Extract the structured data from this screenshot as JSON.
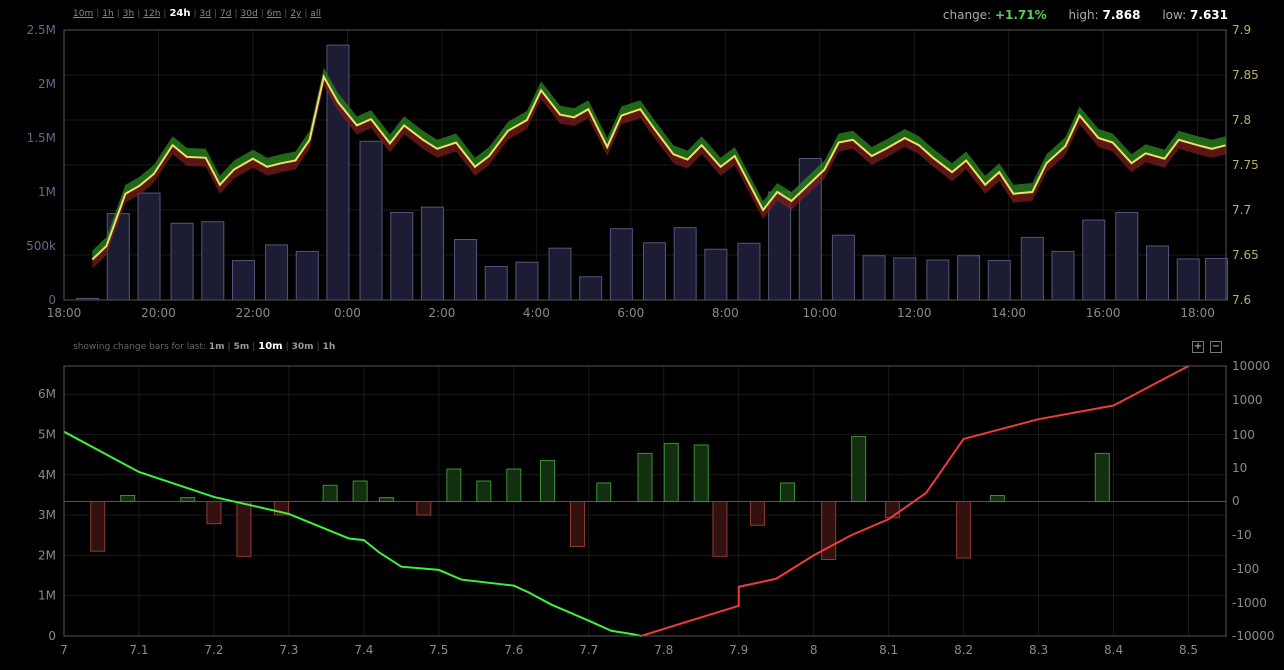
{
  "timeframes": [
    "10m",
    "1h",
    "3h",
    "12h",
    "24h",
    "3d",
    "7d",
    "30d",
    "6m",
    "2y",
    "all"
  ],
  "active_timeframe": "24h",
  "stats": {
    "change_label": "change:",
    "change_value": "+1.71%",
    "high_label": "high:",
    "high_value": "7.868",
    "low_label": "low:",
    "low_value": "7.631"
  },
  "change_bars": {
    "label": "showing change bars for last:",
    "options": [
      "1m",
      "5m",
      "10m",
      "30m",
      "1h"
    ],
    "active": "10m"
  },
  "zoom": {
    "in_label": "+",
    "out_label": "−"
  },
  "chart_data": [
    {
      "type": "bar+line",
      "x_ticks": [
        "18:00",
        "20:00",
        "22:00",
        "0:00",
        "2:00",
        "4:00",
        "6:00",
        "8:00",
        "10:00",
        "12:00",
        "14:00",
        "16:00",
        "18:00"
      ],
      "y_left_ticks": [
        "0",
        "500k",
        "1M",
        "1.5M",
        "2M",
        "2.5M"
      ],
      "y_left_range": [
        0,
        2500000
      ],
      "y_right_ticks": [
        "7.6",
        "7.65",
        "7.7",
        "7.75",
        "7.8",
        "7.85",
        "7.9"
      ],
      "y_right_range": [
        7.6,
        7.9
      ],
      "x_range_hours": [
        18.0,
        42.6
      ],
      "volume_bars": {
        "x": [
          18.5,
          19.15,
          19.8,
          20.5,
          21.15,
          21.8,
          22.5,
          23.15,
          23.8,
          24.5,
          25.15,
          25.8,
          26.5,
          27.15,
          27.8,
          28.5,
          29.15,
          29.8,
          30.5,
          31.15,
          31.8,
          32.5,
          33.15,
          33.8,
          34.5,
          35.15,
          35.8,
          36.5,
          37.15,
          37.8,
          38.5,
          39.15,
          39.8,
          40.5,
          41.15,
          41.8,
          42.4
        ],
        "values": [
          15000,
          800000,
          990000,
          710000,
          725000,
          365000,
          510000,
          450000,
          2360000,
          1470000,
          810000,
          860000,
          560000,
          310000,
          350000,
          480000,
          215000,
          660000,
          530000,
          670000,
          470000,
          525000,
          1000000,
          1310000,
          600000,
          410000,
          390000,
          370000,
          410000,
          365000,
          580000,
          450000,
          740000,
          810000,
          500000,
          380000,
          385000
        ]
      },
      "price": {
        "x": [
          18.6,
          18.9,
          19.3,
          19.6,
          19.9,
          20.3,
          20.6,
          21.0,
          21.3,
          21.6,
          22.0,
          22.3,
          22.6,
          22.9,
          23.2,
          23.5,
          23.8,
          24.2,
          24.5,
          24.9,
          25.2,
          25.6,
          25.9,
          26.3,
          26.7,
          27.0,
          27.4,
          27.8,
          28.1,
          28.5,
          28.8,
          29.1,
          29.5,
          29.8,
          30.2,
          30.5,
          30.9,
          31.2,
          31.5,
          31.9,
          32.2,
          32.5,
          32.8,
          33.1,
          33.4,
          33.7,
          34.1,
          34.4,
          34.7,
          35.1,
          35.4,
          35.8,
          36.1,
          36.4,
          36.8,
          37.1,
          37.5,
          37.8,
          38.1,
          38.5,
          38.8,
          39.2,
          39.5,
          39.9,
          40.2,
          40.6,
          40.9,
          41.3,
          41.6,
          42.0,
          42.3,
          42.6
        ],
        "values": [
          7.645,
          7.66,
          7.718,
          7.727,
          7.74,
          7.772,
          7.759,
          7.758,
          7.728,
          7.745,
          7.757,
          7.748,
          7.752,
          7.755,
          7.778,
          7.848,
          7.82,
          7.794,
          7.801,
          7.774,
          7.794,
          7.778,
          7.768,
          7.775,
          7.748,
          7.76,
          7.788,
          7.8,
          7.833,
          7.806,
          7.803,
          7.812,
          7.77,
          7.805,
          7.812,
          7.79,
          7.762,
          7.756,
          7.772,
          7.748,
          7.76,
          7.73,
          7.7,
          7.72,
          7.71,
          7.725,
          7.745,
          7.775,
          7.778,
          7.76,
          7.768,
          7.78,
          7.772,
          7.758,
          7.742,
          7.755,
          7.728,
          7.742,
          7.718,
          7.72,
          7.752,
          7.771,
          7.805,
          7.78,
          7.775,
          7.752,
          7.763,
          7.757,
          7.778,
          7.772,
          7.768,
          7.772
        ]
      }
    },
    {
      "type": "depth+bar",
      "x_ticks": [
        "7",
        "7.1",
        "7.2",
        "7.3",
        "7.4",
        "7.5",
        "7.6",
        "7.7",
        "7.8",
        "7.9",
        "8",
        "8.1",
        "8.2",
        "8.3",
        "8.4",
        "8.5"
      ],
      "x_range": [
        7.0,
        8.55
      ],
      "y_left_ticks": [
        "0",
        "1M",
        "2M",
        "3M",
        "4M",
        "5M",
        "6M"
      ],
      "y_left_range": [
        0,
        6700000
      ],
      "y_right_ticks": [
        "10000",
        "1000",
        "100",
        "10",
        "0",
        "-10",
        "-100",
        "-1000",
        "-10000"
      ],
      "bids": {
        "x": [
          7.0,
          7.1,
          7.2,
          7.3,
          7.38,
          7.4,
          7.42,
          7.45,
          7.5,
          7.53,
          7.6,
          7.62,
          7.65,
          7.7,
          7.73,
          7.76,
          7.77
        ],
        "values": [
          5070000,
          4070000,
          3450000,
          3030000,
          2420000,
          2380000,
          2080000,
          1720000,
          1640000,
          1400000,
          1250000,
          1080000,
          780000,
          380000,
          130000,
          40000,
          0
        ]
      },
      "asks": {
        "x": [
          7.77,
          7.83,
          7.9,
          7.9,
          7.95,
          8.0,
          8.05,
          8.1,
          8.15,
          8.2,
          8.3,
          8.4,
          8.5
        ],
        "values": [
          0,
          350000,
          750000,
          1220000,
          1420000,
          2000000,
          2500000,
          2900000,
          3550000,
          4890000,
          5380000,
          5720000,
          6700000
        ]
      },
      "change_bars": {
        "x": [
          7.045,
          7.085,
          7.165,
          7.2,
          7.24,
          7.29,
          7.355,
          7.395,
          7.43,
          7.48,
          7.52,
          7.56,
          7.6,
          7.645,
          7.685,
          7.72,
          7.775,
          7.81,
          7.85,
          7.875,
          7.925,
          7.965,
          8.02,
          8.06,
          8.105,
          8.2,
          8.245,
          8.385
        ],
        "values": [
          -28,
          0.5,
          0.3,
          -3.5,
          -40,
          -1.5,
          2,
          3,
          0.3,
          -1.5,
          8,
          3,
          8,
          15,
          -20,
          2.5,
          25,
          50,
          45,
          -40,
          -4,
          2.5,
          -50,
          80,
          -2,
          -45,
          0.5,
          25
        ]
      }
    }
  ]
}
